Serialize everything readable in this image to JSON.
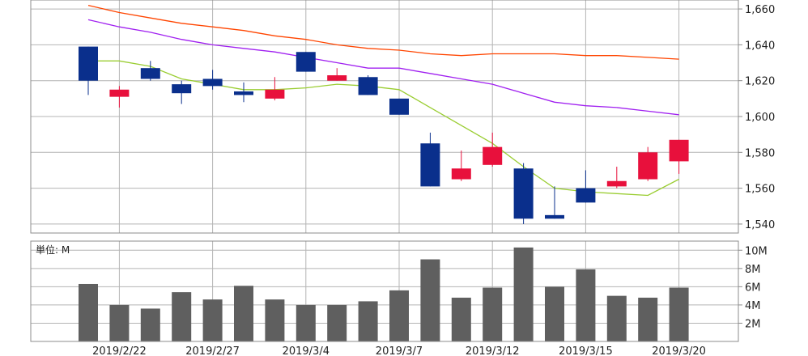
{
  "chart_data": [
    {
      "type": "candlestick",
      "ylim": [
        1535,
        1665
      ],
      "y_ticks": [
        1540,
        1560,
        1580,
        1600,
        1620,
        1640,
        1660
      ],
      "y_tick_labels": [
        "1,540",
        "1,560",
        "1,580",
        "1,600",
        "1,620",
        "1,640",
        "1,660"
      ],
      "x_labels": [
        {
          "index": 1,
          "label": "2019/2/22"
        },
        {
          "index": 4,
          "label": "2019/2/27"
        },
        {
          "index": 7,
          "label": "2019/3/4"
        },
        {
          "index": 10,
          "label": "2019/3/7"
        },
        {
          "index": 13,
          "label": "2019/3/12"
        },
        {
          "index": 16,
          "label": "2019/3/15"
        },
        {
          "index": 19,
          "label": "2019/3/20"
        }
      ],
      "colors": {
        "down": "#0a2f8c",
        "up": "#e8103c",
        "ma_short": "#9acd32",
        "ma_mid": "#a020f0",
        "ma_long": "#ff4500"
      },
      "candles": [
        {
          "open": 1639,
          "high": 1639,
          "low": 1612,
          "close": 1620
        },
        {
          "open": 1611,
          "high": 1617,
          "low": 1605,
          "close": 1615
        },
        {
          "open": 1627,
          "high": 1631,
          "low": 1620,
          "close": 1621
        },
        {
          "open": 1618,
          "high": 1620,
          "low": 1607,
          "close": 1613
        },
        {
          "open": 1621,
          "high": 1626,
          "low": 1615,
          "close": 1617
        },
        {
          "open": 1614,
          "high": 1619,
          "low": 1608,
          "close": 1612
        },
        {
          "open": 1610,
          "high": 1622,
          "low": 1609,
          "close": 1615
        },
        {
          "open": 1636,
          "high": 1636,
          "low": 1625,
          "close": 1625
        },
        {
          "open": 1620,
          "high": 1627,
          "low": 1620,
          "close": 1623
        },
        {
          "open": 1622,
          "high": 1623,
          "low": 1612,
          "close": 1612
        },
        {
          "open": 1610,
          "high": 1610,
          "low": 1601,
          "close": 1601
        },
        {
          "open": 1585,
          "high": 1591,
          "low": 1561,
          "close": 1561
        },
        {
          "open": 1565,
          "high": 1581,
          "low": 1564,
          "close": 1571
        },
        {
          "open": 1573,
          "high": 1591,
          "low": 1572,
          "close": 1583
        },
        {
          "open": 1571,
          "high": 1574,
          "low": 1540,
          "close": 1543
        },
        {
          "open": 1545,
          "high": 1561,
          "low": 1543,
          "close": 1543
        },
        {
          "open": 1560,
          "high": 1570,
          "low": 1552,
          "close": 1552
        },
        {
          "open": 1561,
          "high": 1572,
          "low": 1560,
          "close": 1564
        },
        {
          "open": 1565,
          "high": 1583,
          "low": 1564,
          "close": 1580
        },
        {
          "open": 1575,
          "high": 1587,
          "low": 1568,
          "close": 1587
        }
      ],
      "ma_short": [
        1631,
        1631,
        1628,
        1621,
        1618,
        1615,
        1615,
        1616,
        1618,
        1617,
        1615,
        1605,
        1595,
        1585,
        1572,
        1560,
        1558,
        1557,
        1556,
        1565
      ],
      "ma_mid": [
        1654,
        1650,
        1647,
        1643,
        1640,
        1638,
        1636,
        1633,
        1630,
        1627,
        1627,
        1624,
        1621,
        1618,
        1613,
        1608,
        1606,
        1605,
        1603,
        1601
      ],
      "ma_long": [
        1662,
        1658,
        1655,
        1652,
        1650,
        1648,
        1645,
        1643,
        1640,
        1638,
        1637,
        1635,
        1634,
        1635,
        1635,
        1635,
        1634,
        1634,
        1633,
        1632
      ]
    },
    {
      "type": "bar",
      "unit_label": "単位: M",
      "ylim": [
        0,
        11
      ],
      "y_ticks": [
        2,
        4,
        6,
        8,
        10
      ],
      "y_tick_labels": [
        "2M",
        "4M",
        "6M",
        "8M",
        "10M"
      ],
      "bar_color": "#5f5f5f",
      "values": [
        6.3,
        4.0,
        3.6,
        5.4,
        4.6,
        6.1,
        4.6,
        4.0,
        4.0,
        4.4,
        5.6,
        9.0,
        4.8,
        5.9,
        10.3,
        6.0,
        7.9,
        5.0,
        4.8,
        5.9
      ]
    }
  ]
}
